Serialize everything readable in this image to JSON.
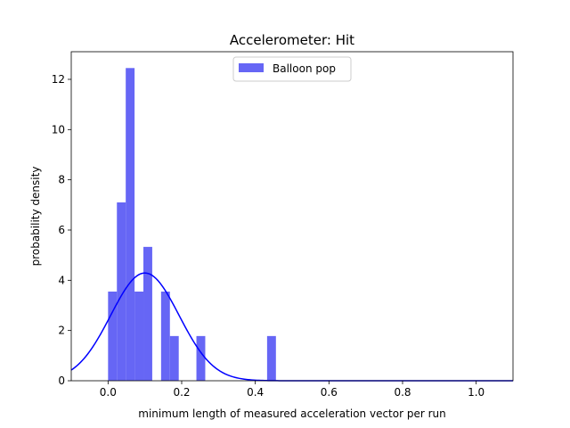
{
  "chart_data": {
    "type": "bar",
    "title": "Accelerometer: Hit",
    "xlabel": "minimum length of measured acceleration vector per run",
    "ylabel": "probability density",
    "xlim": [
      -0.1,
      1.1
    ],
    "ylim": [
      0,
      13.1
    ],
    "x_ticks": [
      "0.0",
      "0.2",
      "0.4",
      "0.6",
      "0.8",
      "1.0"
    ],
    "x_tick_values": [
      0.0,
      0.2,
      0.4,
      0.6,
      0.8,
      1.0
    ],
    "y_ticks": [
      "0",
      "2",
      "4",
      "6",
      "8",
      "10",
      "12"
    ],
    "y_tick_values": [
      0,
      2,
      4,
      6,
      8,
      10,
      12
    ],
    "grid": false,
    "legend": {
      "placement": "top-center",
      "entries": [
        "Balloon pop"
      ]
    },
    "histogram": {
      "name": "Balloon pop",
      "color": "#6666f5",
      "bins": [
        {
          "x0": 0.0,
          "x1": 0.024,
          "density": 3.55
        },
        {
          "x0": 0.024,
          "x1": 0.048,
          "density": 7.1
        },
        {
          "x0": 0.048,
          "x1": 0.072,
          "density": 12.45
        },
        {
          "x0": 0.072,
          "x1": 0.096,
          "density": 3.55
        },
        {
          "x0": 0.096,
          "x1": 0.12,
          "density": 5.33
        },
        {
          "x0": 0.144,
          "x1": 0.168,
          "density": 3.55
        },
        {
          "x0": 0.168,
          "x1": 0.192,
          "density": 1.78
        },
        {
          "x0": 0.24,
          "x1": 0.264,
          "density": 1.78
        },
        {
          "x0": 0.432,
          "x1": 0.456,
          "density": 1.78
        }
      ]
    },
    "fit_curve": {
      "type": "normal-pdf",
      "color": "#0000ff",
      "mean": 0.1,
      "std": 0.093
    }
  }
}
